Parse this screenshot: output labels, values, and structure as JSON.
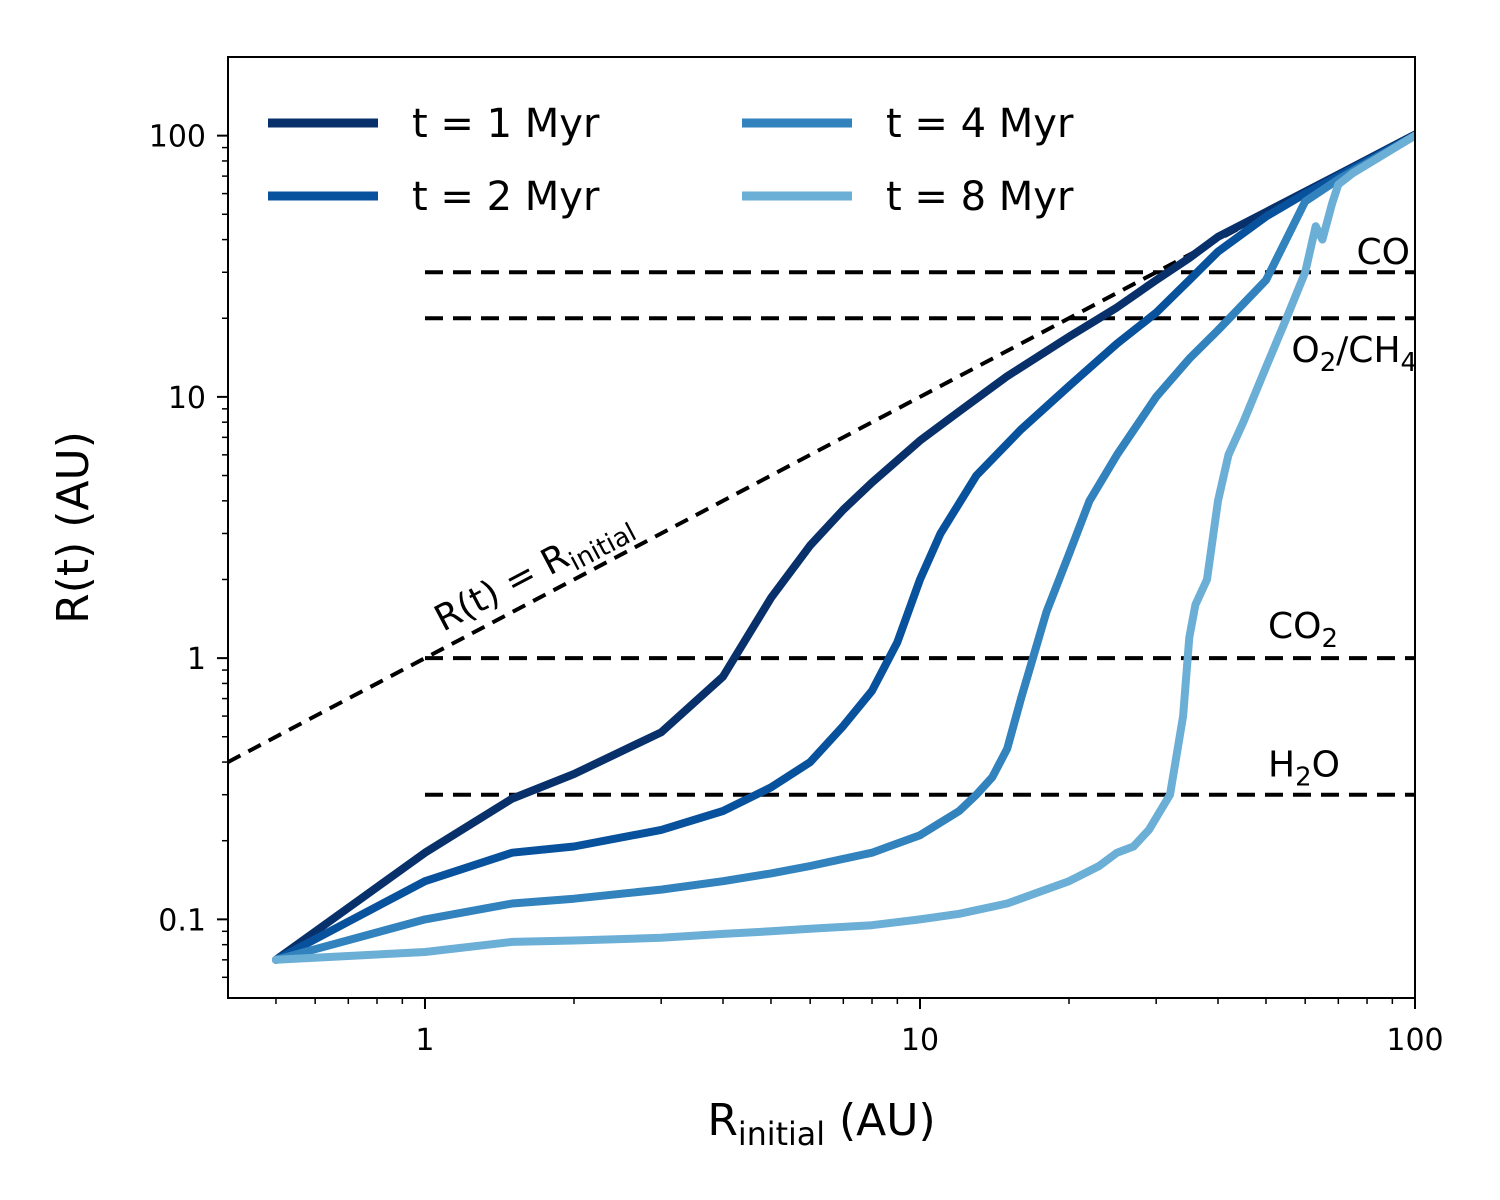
{
  "chart_data": {
    "type": "line",
    "xlabel": {
      "main": "R",
      "sub": "initial",
      "unit": " (AU)"
    },
    "ylabel": "R(t) (AU)",
    "xscale": "log",
    "yscale": "log",
    "xlim": [
      0.4,
      100
    ],
    "ylim": [
      0.05,
      200
    ],
    "x_ticks": [
      {
        "value": 1,
        "label": "1"
      },
      {
        "value": 10,
        "label": "10"
      },
      {
        "value": 100,
        "label": "100"
      }
    ],
    "y_ticks": [
      {
        "value": 0.1,
        "label": "0.1"
      },
      {
        "value": 1,
        "label": "1"
      },
      {
        "value": 10,
        "label": "10"
      },
      {
        "value": 100,
        "label": "100"
      }
    ],
    "grid": false,
    "legend": {
      "placement": "top-left",
      "columns": 2
    },
    "series": [
      {
        "name": "t = 1 Myr",
        "color": "#08306b",
        "x": [
          0.5,
          1.0,
          1.5,
          2.0,
          3.0,
          4.0,
          5.0,
          6.0,
          7.0,
          8.0,
          10.0,
          12.0,
          15.0,
          20.0,
          25.0,
          30.0,
          35.0,
          40.0,
          50.0,
          60.0,
          70.0,
          100.0
        ],
        "y": [
          0.07,
          0.18,
          0.29,
          0.36,
          0.52,
          0.85,
          1.7,
          2.7,
          3.7,
          4.7,
          6.8,
          8.8,
          12.0,
          17.0,
          22.0,
          28.0,
          34.0,
          41.0,
          51.0,
          61.0,
          71.0,
          101.0
        ]
      },
      {
        "name": "t = 2 Myr",
        "color": "#08519c",
        "x": [
          0.5,
          1.0,
          1.5,
          2.0,
          3.0,
          4.0,
          5.0,
          6.0,
          7.0,
          8.0,
          9.0,
          10.0,
          11.0,
          13.0,
          16.0,
          20.0,
          25.0,
          30.0,
          35.0,
          40.0,
          50.0,
          60.0,
          70.0,
          100.0
        ],
        "y": [
          0.07,
          0.14,
          0.18,
          0.19,
          0.22,
          0.26,
          0.32,
          0.4,
          0.55,
          0.75,
          1.15,
          2.0,
          3.0,
          5.0,
          7.5,
          11.0,
          16.0,
          21.0,
          28.0,
          36.0,
          49.0,
          60.0,
          70.0,
          100.0
        ]
      },
      {
        "name": "t = 4 Myr",
        "color": "#3182bd",
        "x": [
          0.5,
          1.0,
          1.5,
          2.0,
          3.0,
          4.0,
          5.0,
          6.0,
          8.0,
          10.0,
          12.0,
          13.0,
          14.0,
          15.0,
          16.0,
          18.0,
          20.0,
          22.0,
          25.0,
          30.0,
          35.0,
          40.0,
          50.0,
          60.0,
          70.0,
          100.0
        ],
        "y": [
          0.07,
          0.1,
          0.115,
          0.12,
          0.13,
          0.14,
          0.15,
          0.16,
          0.18,
          0.21,
          0.26,
          0.3,
          0.35,
          0.45,
          0.7,
          1.5,
          2.5,
          4.0,
          6.0,
          10.0,
          14.0,
          18.0,
          28.0,
          56.0,
          68.0,
          100.0
        ]
      },
      {
        "name": "t = 8 Myr",
        "color": "#6baed6",
        "x": [
          0.5,
          1.0,
          1.5,
          2.0,
          3.0,
          4.0,
          5.0,
          6.0,
          8.0,
          10.0,
          12.0,
          15.0,
          20.0,
          23.0,
          25.0,
          27.0,
          29.0,
          32.0,
          34.0,
          35.0,
          36.0,
          38.0,
          40.0,
          42.0,
          45.0,
          50.0,
          55.0,
          60.0,
          63.0,
          65.0,
          68.0,
          70.0,
          75.0,
          100.0
        ],
        "y": [
          0.07,
          0.075,
          0.082,
          0.083,
          0.085,
          0.088,
          0.09,
          0.092,
          0.095,
          0.1,
          0.105,
          0.115,
          0.14,
          0.16,
          0.18,
          0.19,
          0.22,
          0.3,
          0.6,
          1.2,
          1.6,
          2.0,
          4.0,
          6.0,
          8.0,
          13.0,
          20.0,
          30.0,
          45.0,
          40.0,
          55.0,
          65.0,
          72.0,
          100.0
        ]
      }
    ],
    "reference_line": {
      "label_main": "R(t) = R",
      "label_sub": "initial",
      "x": [
        0.4,
        100.0
      ],
      "y": [
        0.4,
        100.0
      ],
      "style": "dashed",
      "color": "#000000"
    },
    "snowlines": [
      {
        "value": 30,
        "label": "CO",
        "x_start": 1.0,
        "x_end": 100.0
      },
      {
        "value": 20,
        "label": "O2/CH4",
        "x_start": 1.0,
        "x_end": 100.0
      },
      {
        "value": 1,
        "label": "CO2",
        "x_start": 1.0,
        "x_end": 100.0
      },
      {
        "value": 0.3,
        "label": "H2O",
        "x_start": 1.0,
        "x_end": 100.0
      }
    ]
  }
}
